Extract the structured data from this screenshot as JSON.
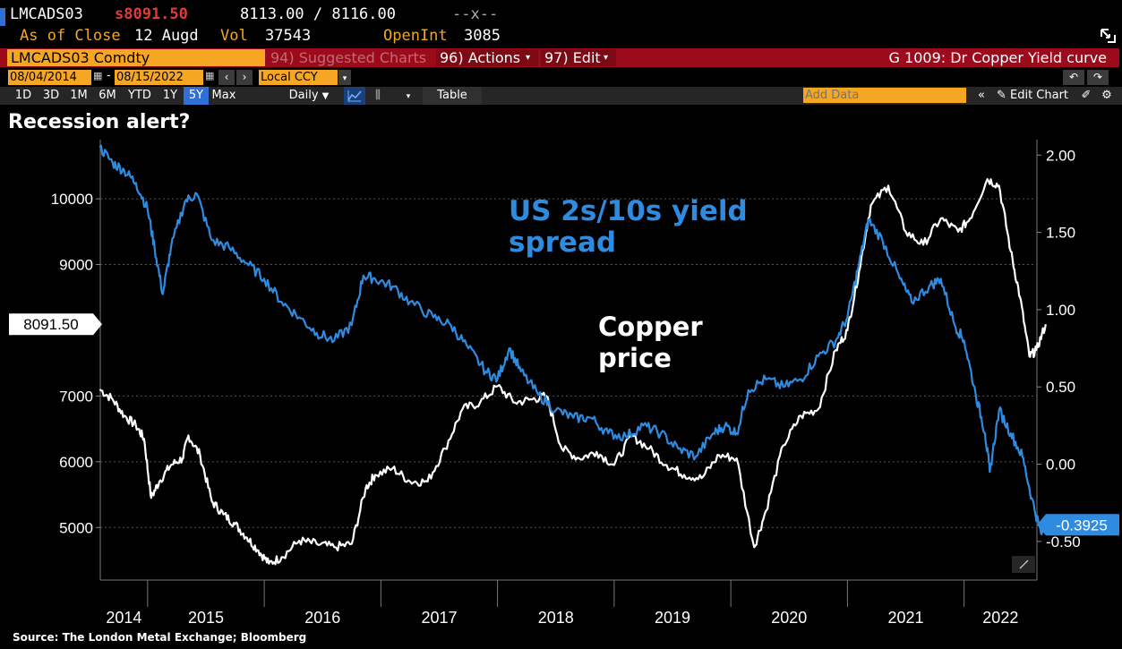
{
  "header": {
    "ticker": "LMCADS03",
    "last_price": "s8091.50",
    "bid_ask": "8113.00 / 8116.00",
    "change": "--x--",
    "as_of_label": "As of Close",
    "as_of_date": "12 Augd",
    "vol_label": "Vol",
    "vol_value": "37543",
    "openint_label": "OpenInt",
    "openint_value": "3085"
  },
  "toolbar": {
    "security": "LMCADS03 Comdty",
    "suggested": "94) Suggested Charts",
    "actions": "96) Actions",
    "edit": "97) Edit",
    "chart_name": "G 1009: Dr Copper Yield curve",
    "start_date": "08/04/2014",
    "end_date": "08/15/2022",
    "currency": "Local CCY",
    "periods": [
      "1D",
      "3D",
      "1M",
      "6M",
      "YTD",
      "1Y",
      "5Y",
      "Max"
    ],
    "active_period": "5Y",
    "frequency": "Daily",
    "table_label": "Table",
    "add_data_placeholder": "Add Data",
    "edit_chart_label": "Edit Chart"
  },
  "colors": {
    "copper": "#ffffff",
    "spread": "#2f8be0",
    "toolbar_red": "#9c0b1b",
    "field_orange": "#f5a623",
    "price_red": "#e23a3a"
  },
  "chart_data": {
    "type": "line",
    "title": "Recession alert?",
    "source": "Source: The London Metal Exchange; Bloomberg",
    "x_range": [
      "2014-08-04",
      "2022-08-15"
    ],
    "x_ticks": [
      "2014",
      "2015",
      "2016",
      "2017",
      "2018",
      "2019",
      "2020",
      "2021",
      "2022"
    ],
    "left_axis": {
      "ticks": [
        "10000",
        "9000",
        "7000",
        "6000",
        "5000"
      ],
      "range": [
        4200,
        10900
      ]
    },
    "right_axis": {
      "ticks": [
        "2.00",
        "1.50",
        "1.00",
        "0.50",
        "0.00",
        "-0.50"
      ],
      "range": [
        -0.75,
        2.1
      ]
    },
    "series": [
      {
        "name": "Copper price",
        "axis": "left",
        "last_label": "8091.50",
        "points": [
          [
            2014.59,
            7100
          ],
          [
            2014.7,
            6950
          ],
          [
            2014.8,
            6700
          ],
          [
            2014.9,
            6550
          ],
          [
            2014.97,
            6350
          ],
          [
            2015.03,
            5450
          ],
          [
            2015.1,
            5700
          ],
          [
            2015.2,
            5950
          ],
          [
            2015.3,
            6050
          ],
          [
            2015.35,
            6400
          ],
          [
            2015.45,
            6100
          ],
          [
            2015.55,
            5400
          ],
          [
            2015.65,
            5200
          ],
          [
            2015.75,
            5050
          ],
          [
            2015.85,
            4850
          ],
          [
            2015.95,
            4650
          ],
          [
            2016.04,
            4450
          ],
          [
            2016.15,
            4550
          ],
          [
            2016.3,
            4800
          ],
          [
            2016.45,
            4750
          ],
          [
            2016.6,
            4700
          ],
          [
            2016.75,
            4750
          ],
          [
            2016.87,
            5600
          ],
          [
            2016.95,
            5800
          ],
          [
            2017.1,
            5900
          ],
          [
            2017.25,
            5700
          ],
          [
            2017.4,
            5700
          ],
          [
            2017.55,
            6200
          ],
          [
            2017.7,
            6800
          ],
          [
            2017.85,
            6900
          ],
          [
            2018.0,
            7150
          ],
          [
            2018.15,
            6900
          ],
          [
            2018.3,
            6950
          ],
          [
            2018.42,
            7000
          ],
          [
            2018.55,
            6200
          ],
          [
            2018.7,
            6050
          ],
          [
            2018.85,
            6150
          ],
          [
            2019.0,
            5950
          ],
          [
            2019.15,
            6400
          ],
          [
            2019.3,
            6200
          ],
          [
            2019.45,
            5950
          ],
          [
            2019.6,
            5800
          ],
          [
            2019.75,
            5750
          ],
          [
            2019.9,
            6100
          ],
          [
            2020.05,
            6050
          ],
          [
            2020.2,
            4700
          ],
          [
            2020.3,
            5250
          ],
          [
            2020.45,
            6250
          ],
          [
            2020.6,
            6700
          ],
          [
            2020.75,
            6800
          ],
          [
            2020.9,
            7700
          ],
          [
            2021.0,
            8000
          ],
          [
            2021.1,
            8900
          ],
          [
            2021.2,
            9900
          ],
          [
            2021.35,
            10200
          ],
          [
            2021.5,
            9500
          ],
          [
            2021.65,
            9300
          ],
          [
            2021.8,
            9700
          ],
          [
            2021.95,
            9500
          ],
          [
            2022.05,
            9700
          ],
          [
            2022.2,
            10300
          ],
          [
            2022.3,
            10200
          ],
          [
            2022.4,
            9200
          ],
          [
            2022.48,
            8500
          ],
          [
            2022.56,
            7600
          ],
          [
            2022.62,
            7700
          ],
          [
            2022.7,
            8091.5
          ]
        ]
      },
      {
        "name": "US 2s/10s yield spread",
        "axis": "right",
        "last_label": "-0.3925",
        "points": [
          [
            2014.59,
            2.05
          ],
          [
            2014.7,
            1.95
          ],
          [
            2014.8,
            1.9
          ],
          [
            2014.9,
            1.82
          ],
          [
            2015.0,
            1.65
          ],
          [
            2015.06,
            1.4
          ],
          [
            2015.13,
            1.1
          ],
          [
            2015.2,
            1.4
          ],
          [
            2015.32,
            1.7
          ],
          [
            2015.42,
            1.75
          ],
          [
            2015.55,
            1.45
          ],
          [
            2015.7,
            1.4
          ],
          [
            2015.85,
            1.3
          ],
          [
            2016.0,
            1.2
          ],
          [
            2016.15,
            1.05
          ],
          [
            2016.3,
            0.95
          ],
          [
            2016.45,
            0.85
          ],
          [
            2016.6,
            0.8
          ],
          [
            2016.75,
            0.9
          ],
          [
            2016.85,
            1.22
          ],
          [
            2016.95,
            1.2
          ],
          [
            2017.1,
            1.15
          ],
          [
            2017.25,
            1.05
          ],
          [
            2017.45,
            0.95
          ],
          [
            2017.6,
            0.9
          ],
          [
            2017.75,
            0.75
          ],
          [
            2017.9,
            0.6
          ],
          [
            2018.0,
            0.55
          ],
          [
            2018.1,
            0.75
          ],
          [
            2018.2,
            0.6
          ],
          [
            2018.35,
            0.45
          ],
          [
            2018.5,
            0.35
          ],
          [
            2018.65,
            0.3
          ],
          [
            2018.8,
            0.3
          ],
          [
            2018.95,
            0.2
          ],
          [
            2019.1,
            0.18
          ],
          [
            2019.25,
            0.25
          ],
          [
            2019.4,
            0.2
          ],
          [
            2019.55,
            0.1
          ],
          [
            2019.7,
            0.05
          ],
          [
            2019.85,
            0.2
          ],
          [
            2019.95,
            0.25
          ],
          [
            2020.05,
            0.2
          ],
          [
            2020.15,
            0.48
          ],
          [
            2020.3,
            0.55
          ],
          [
            2020.45,
            0.5
          ],
          [
            2020.6,
            0.55
          ],
          [
            2020.75,
            0.7
          ],
          [
            2020.9,
            0.8
          ],
          [
            2021.0,
            0.95
          ],
          [
            2021.1,
            1.3
          ],
          [
            2021.18,
            1.58
          ],
          [
            2021.3,
            1.45
          ],
          [
            2021.45,
            1.2
          ],
          [
            2021.55,
            1.05
          ],
          [
            2021.7,
            1.15
          ],
          [
            2021.8,
            1.2
          ],
          [
            2021.92,
            0.9
          ],
          [
            2022.0,
            0.8
          ],
          [
            2022.1,
            0.45
          ],
          [
            2022.18,
            0.2
          ],
          [
            2022.22,
            -0.05
          ],
          [
            2022.3,
            0.35
          ],
          [
            2022.4,
            0.2
          ],
          [
            2022.5,
            0.05
          ],
          [
            2022.58,
            -0.22
          ],
          [
            2022.66,
            -0.45
          ],
          [
            2022.7,
            -0.3925
          ]
        ]
      }
    ],
    "annotations": [
      {
        "text": "US 2s/10s yield spread",
        "lines": [
          "US 2s/10s yield",
          "spread"
        ],
        "color": "#2f8be0"
      },
      {
        "text": "Copper price",
        "lines": [
          "Copper",
          "price"
        ],
        "color": "#ffffff"
      }
    ]
  }
}
